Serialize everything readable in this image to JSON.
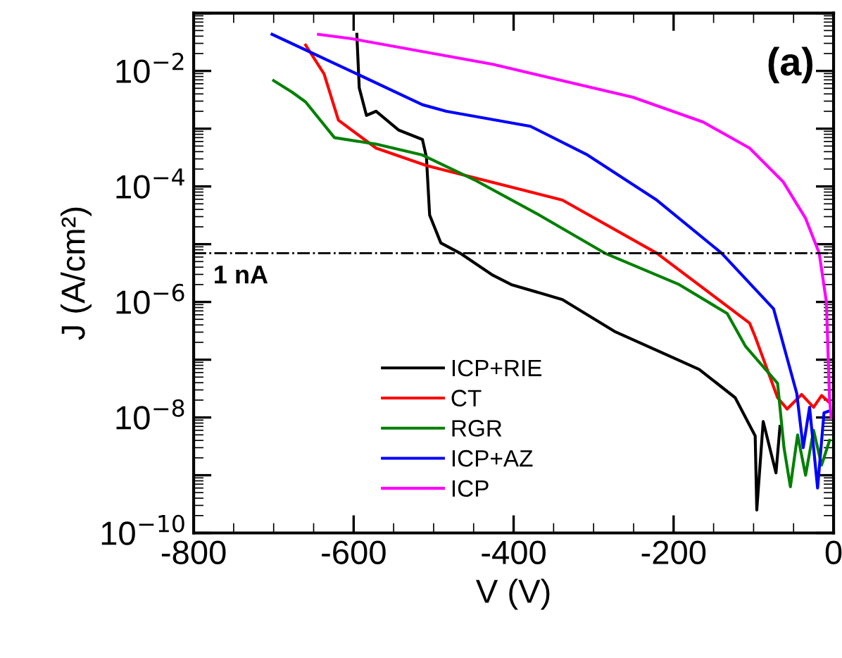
{
  "chart_data": {
    "type": "line",
    "xlabel": "V (V)",
    "ylabel": "J (A/cm²)",
    "log": "y",
    "xlim": [
      -800,
      0
    ],
    "xticks": [
      -800,
      -600,
      -400,
      -200,
      0
    ],
    "ylim": [
      1e-10,
      0.1
    ],
    "yticks": [
      {
        "value": 1e-10,
        "label": "10$^{−10}$"
      },
      {
        "value": 1e-09,
        "label": null
      },
      {
        "value": 1e-08,
        "label": "10$^{−8}$"
      },
      {
        "value": 1e-07,
        "label": null
      },
      {
        "value": 1e-06,
        "label": "10$^{−6}$"
      },
      {
        "value": 1e-05,
        "label": null
      },
      {
        "value": 0.0001,
        "label": "10$^{−4}$"
      },
      {
        "value": 0.001,
        "label": null
      },
      {
        "value": 0.01,
        "label": "10$^{−2}$"
      },
      {
        "value": 0.1,
        "label": null
      }
    ],
    "grid": false,
    "legend": "bottom",
    "marker": "none",
    "line_style": "solid",
    "annotations": [
      "(a)"
    ],
    "ref_lines": [
      {
        "axis": "y",
        "value": 7e-06,
        "label": "1 nA",
        "line_style": "dashdot",
        "color": "#000000"
      }
    ],
    "series": [
      {
        "name": "ICP+RIE",
        "color": "#000000",
        "x": [
          -596,
          -593,
          -584,
          -572,
          -544,
          -514,
          -509,
          -505,
          -491,
          -467,
          -426,
          -403,
          -339,
          -274,
          -168,
          -123,
          -98,
          -96,
          -88,
          -72,
          -67
        ],
        "values": [
          0.043,
          0.0051,
          0.0017,
          0.002,
          0.00095,
          0.00065,
          0.00032,
          3.2e-05,
          1.05e-05,
          7e-06,
          2.9e-06,
          2e-06,
          1.1e-06,
          3.1e-07,
          6.8e-08,
          2.2e-08,
          4.8e-09,
          2.5e-10,
          8.5e-09,
          1.1e-09,
          7e-09
        ]
      },
      {
        "name": "CT",
        "color": "#ff0000",
        "x": [
          -660,
          -637,
          -619,
          -572,
          -509,
          -339,
          -221,
          -105,
          -98,
          -70,
          -58,
          -40,
          -25,
          -15,
          -5
        ],
        "values": [
          0.028,
          0.0089,
          0.0014,
          0.00046,
          0.00023,
          5.8e-05,
          7e-06,
          4.3e-07,
          2.5e-07,
          2.2e-08,
          1.4e-08,
          2.5e-08,
          1.5e-08,
          2.4e-08,
          1.8e-08
        ]
      },
      {
        "name": "RGR",
        "color": "#008000",
        "x": [
          -700,
          -677,
          -660,
          -624,
          -572,
          -514,
          -449,
          -368,
          -286,
          -193,
          -133,
          -110,
          -70,
          -62,
          -54,
          -45,
          -35,
          -25,
          -15,
          -5
        ],
        "values": [
          0.0068,
          0.0043,
          0.0029,
          0.0007,
          0.00054,
          0.00035,
          0.00013,
          3.2e-05,
          7e-06,
          2e-06,
          6.3e-07,
          1.7e-07,
          3.9e-08,
          3e-09,
          6.3e-10,
          5e-09,
          1e-09,
          6e-09,
          1.5e-09,
          4e-09
        ]
      },
      {
        "name": "ICP+AZ",
        "color": "#0000ff",
        "x": [
          -702,
          -596,
          -514,
          -484,
          -379,
          -309,
          -221,
          -140,
          -75,
          -46,
          -38,
          -30,
          -20,
          -12,
          -5
        ],
        "values": [
          0.043,
          0.0089,
          0.0026,
          0.002,
          0.0011,
          0.00036,
          5.8e-05,
          7e-06,
          7.6e-07,
          2.6e-08,
          3e-09,
          1.5e-08,
          6e-10,
          1.2e-08,
          1.3e-08
        ]
      },
      {
        "name": "ICP",
        "color": "#ff00ff",
        "x": [
          -644,
          -602,
          -426,
          -251,
          -163,
          -105,
          -63,
          -35,
          -18,
          -9,
          -5,
          -3
        ],
        "values": [
          0.043,
          0.036,
          0.013,
          0.0035,
          0.0013,
          0.00046,
          0.00012,
          2.8e-05,
          7e-06,
          1e-06,
          2e-08,
          1e-08
        ]
      }
    ]
  }
}
